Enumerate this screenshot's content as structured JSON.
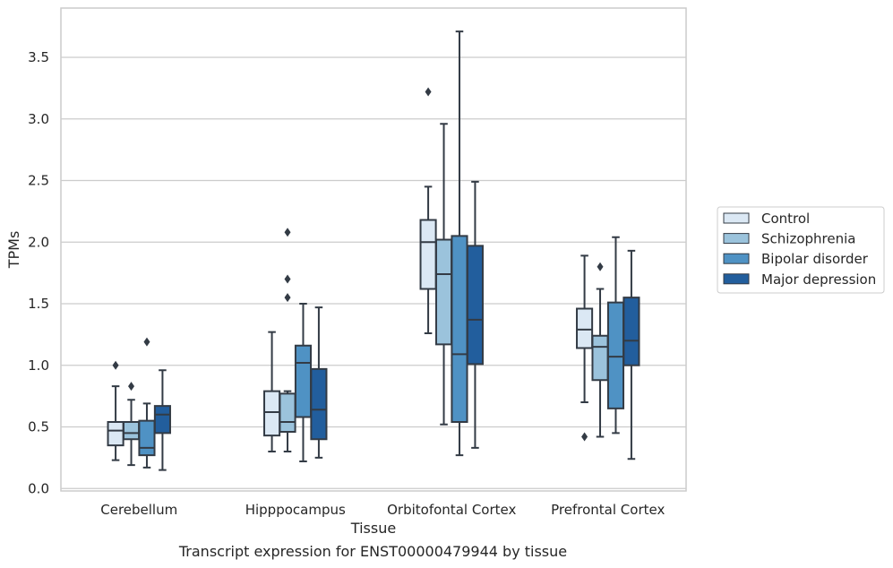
{
  "caption": "Transcript expression for ENST00000479944 by tissue",
  "chart_data": {
    "type": "boxplot",
    "xlabel": "Tissue",
    "ylabel": "TPMs",
    "ylim": [
      -0.02,
      3.9
    ],
    "yticks": [
      0.0,
      0.5,
      1.0,
      1.5,
      2.0,
      2.5,
      3.0,
      3.5
    ],
    "ytick_labels": [
      "0.0",
      "0.5",
      "1.0",
      "1.5",
      "2.0",
      "2.5",
      "3.0",
      "3.5"
    ],
    "grid": "horizontal",
    "legend_position": "outside-right",
    "categories": [
      "Cerebellum",
      "Hipppocampus",
      "Orbitofontal Cortex",
      "Prefrontal Cortex"
    ],
    "series": [
      {
        "name": "Control",
        "color": "#dbe8f4",
        "boxes": [
          {
            "whislo": 0.23,
            "q1": 0.35,
            "med": 0.47,
            "q3": 0.54,
            "whishi": 0.83,
            "fliers": [
              1.0
            ]
          },
          {
            "whislo": 0.3,
            "q1": 0.43,
            "med": 0.62,
            "q3": 0.79,
            "whishi": 1.27,
            "fliers": []
          },
          {
            "whislo": 1.26,
            "q1": 1.62,
            "med": 2.0,
            "q3": 2.18,
            "whishi": 2.45,
            "fliers": [
              3.22
            ]
          },
          {
            "whislo": 0.7,
            "q1": 1.14,
            "med": 1.29,
            "q3": 1.46,
            "whishi": 1.89,
            "fliers": [
              0.42
            ]
          }
        ]
      },
      {
        "name": "Schizophrenia",
        "color": "#9bc3dc",
        "boxes": [
          {
            "whislo": 0.19,
            "q1": 0.4,
            "med": 0.45,
            "q3": 0.54,
            "whishi": 0.72,
            "fliers": [
              0.83
            ]
          },
          {
            "whislo": 0.3,
            "q1": 0.46,
            "med": 0.54,
            "q3": 0.77,
            "whishi": 0.79,
            "fliers": [
              1.55,
              1.7,
              2.08
            ]
          },
          {
            "whislo": 0.52,
            "q1": 1.17,
            "med": 1.74,
            "q3": 2.02,
            "whishi": 2.96,
            "fliers": []
          },
          {
            "whislo": 0.42,
            "q1": 0.88,
            "med": 1.15,
            "q3": 1.24,
            "whishi": 1.62,
            "fliers": [
              1.8
            ]
          }
        ]
      },
      {
        "name": "Bipolar disorder",
        "color": "#4f92c4",
        "boxes": [
          {
            "whislo": 0.17,
            "q1": 0.27,
            "med": 0.33,
            "q3": 0.55,
            "whishi": 0.69,
            "fliers": [
              1.19
            ]
          },
          {
            "whislo": 0.22,
            "q1": 0.58,
            "med": 1.02,
            "q3": 1.16,
            "whishi": 1.5,
            "fliers": []
          },
          {
            "whislo": 0.27,
            "q1": 0.54,
            "med": 1.09,
            "q3": 2.05,
            "whishi": 3.71,
            "fliers": []
          },
          {
            "whislo": 0.45,
            "q1": 0.65,
            "med": 1.07,
            "q3": 1.51,
            "whishi": 2.04,
            "fliers": []
          }
        ]
      },
      {
        "name": "Major depression",
        "color": "#225e9d",
        "boxes": [
          {
            "whislo": 0.15,
            "q1": 0.45,
            "med": 0.6,
            "q3": 0.67,
            "whishi": 0.96,
            "fliers": []
          },
          {
            "whislo": 0.25,
            "q1": 0.4,
            "med": 0.64,
            "q3": 0.97,
            "whishi": 1.47,
            "fliers": []
          },
          {
            "whislo": 0.33,
            "q1": 1.01,
            "med": 1.37,
            "q3": 1.97,
            "whishi": 2.49,
            "fliers": []
          },
          {
            "whislo": 0.24,
            "q1": 1.0,
            "med": 1.2,
            "q3": 1.55,
            "whishi": 1.93,
            "fliers": []
          }
        ]
      }
    ]
  }
}
